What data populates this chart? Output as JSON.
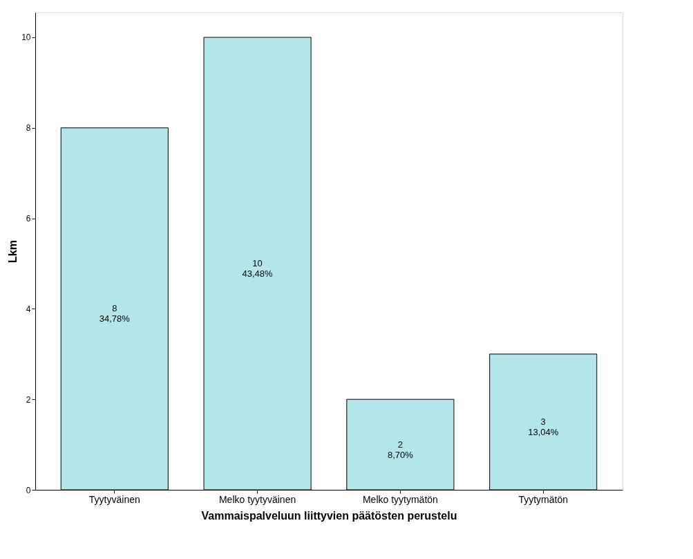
{
  "chart_data": {
    "type": "bar",
    "xlabel": "Vammaispalveluun liittyvien päätösten perustelu",
    "ylabel": "Lkm",
    "categories": [
      "Tyytyväinen",
      "Melko tyytyväinen",
      "Melko tyytymätön",
      "Tyytymätön"
    ],
    "values": [
      8,
      10,
      2,
      3
    ],
    "color": "#b3e6e8",
    "value_labels": [
      "8\n34,78%",
      "10\n43,48%",
      "2\n8,70%",
      "3\n13,04%"
    ],
    "ylim": [
      0,
      10.55
    ],
    "yticks": [
      0,
      2,
      4,
      6,
      8,
      10
    ],
    "grid": false
  }
}
